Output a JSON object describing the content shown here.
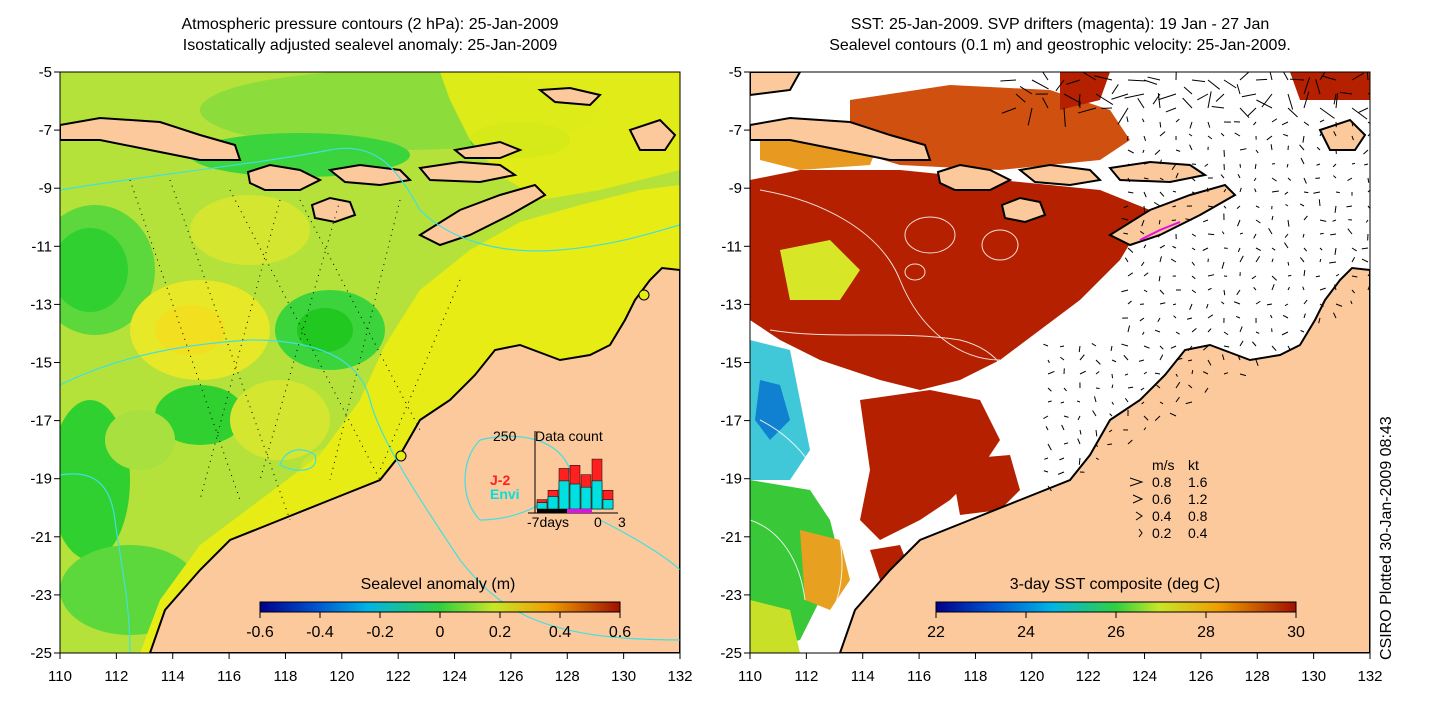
{
  "left_panel": {
    "title_line1": "Atmospheric pressure contours (2 hPa): 25-Jan-2009",
    "title_line2": "Isostatically adjusted sealevel anomaly: 25-Jan-2009",
    "colorbar": {
      "title": "Sealevel anomaly (m)",
      "ticks": [
        "-0.6",
        "-0.4",
        "-0.2",
        "0",
        "0.2",
        "0.4",
        "0.6"
      ]
    },
    "data_count": {
      "title": "Data count",
      "ymax_label": "250",
      "series1_name": "J-2",
      "series2_name": "Envi",
      "xlabel_left": "-7days",
      "xlabel_mid": "0",
      "xlabel_right": "3",
      "j2_values": [
        30,
        60,
        130,
        140,
        110,
        160,
        60
      ],
      "envi_values": [
        20,
        40,
        90,
        80,
        70,
        90,
        30
      ],
      "ymax": 250,
      "series1_color": "#ff2020",
      "series2_color": "#00e0e0"
    }
  },
  "right_panel": {
    "title_line1": "SST: 25-Jan-2009. SVP drifters (magenta): 19 Jan - 27 Jan",
    "title_line2": "Sealevel contours (0.1 m) and geostrophic velocity: 25-Jan-2009.",
    "colorbar": {
      "title": "3-day SST composite (deg C)",
      "ticks": [
        "22",
        "24",
        "26",
        "28",
        "30"
      ]
    },
    "velocity_legend": {
      "header_ms": "m/s",
      "header_kt": "kt",
      "rows": [
        {
          "ms": "0.8",
          "kt": "1.6"
        },
        {
          "ms": "0.6",
          "kt": "1.2"
        },
        {
          "ms": "0.4",
          "kt": "0.8"
        },
        {
          "ms": "0.2",
          "kt": "0.4"
        }
      ]
    },
    "credit": "CSIRO Plotted 30-Jan-2009 08:43"
  },
  "axes": {
    "y_ticks": [
      "-5",
      "-7",
      "-9",
      "-11",
      "-13",
      "-15",
      "-17",
      "-19",
      "-21",
      "-23",
      "-25"
    ],
    "x_ticks": [
      "110",
      "112",
      "114",
      "116",
      "118",
      "120",
      "122",
      "124",
      "126",
      "128",
      "130",
      "132"
    ]
  },
  "colors": {
    "land": "#fcc99c",
    "ocean_yellow": "#e6ec14",
    "ocean_green": "#a8e040",
    "ocean_darkgreen": "#28d028",
    "sst_red": "#b82000",
    "sst_orange": "#e07810",
    "contour_cyan": "#40e0e0"
  }
}
